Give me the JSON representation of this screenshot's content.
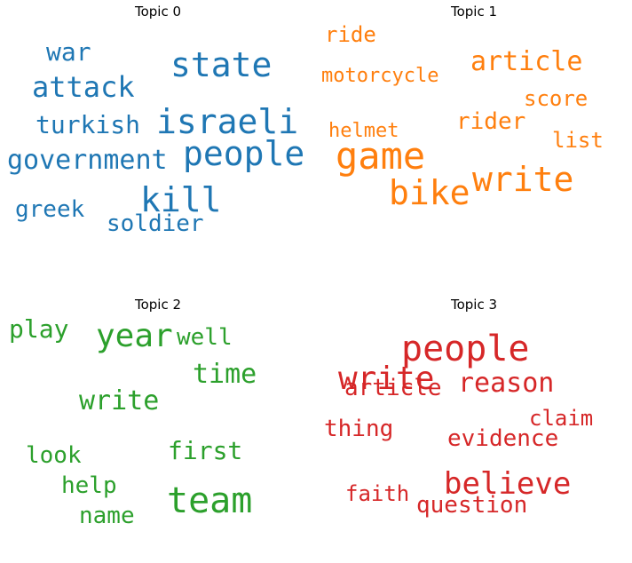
{
  "chart_data": [
    {
      "type": "wordcloud",
      "title": "Topic 0",
      "color": "#1f77b4",
      "words": [
        {
          "text": "state",
          "weight": 1.0
        },
        {
          "text": "israeli",
          "weight": 0.98
        },
        {
          "text": "people",
          "weight": 0.95
        },
        {
          "text": "kill",
          "weight": 0.93
        },
        {
          "text": "attack",
          "weight": 0.85
        },
        {
          "text": "government",
          "weight": 0.82
        },
        {
          "text": "turkish",
          "weight": 0.74
        },
        {
          "text": "war",
          "weight": 0.72
        },
        {
          "text": "greek",
          "weight": 0.66
        },
        {
          "text": "soldier",
          "weight": 0.65
        }
      ]
    },
    {
      "type": "wordcloud",
      "title": "Topic 1",
      "color": "#ff7f0e",
      "words": [
        {
          "text": "game",
          "weight": 1.0
        },
        {
          "text": "write",
          "weight": 0.95
        },
        {
          "text": "bike",
          "weight": 0.92
        },
        {
          "text": "article",
          "weight": 0.82
        },
        {
          "text": "rider",
          "weight": 0.7
        },
        {
          "text": "ride",
          "weight": 0.62
        },
        {
          "text": "score",
          "weight": 0.62
        },
        {
          "text": "list",
          "weight": 0.62
        },
        {
          "text": "motorcycle",
          "weight": 0.6
        },
        {
          "text": "helmet",
          "weight": 0.58
        }
      ]
    },
    {
      "type": "wordcloud",
      "title": "Topic 2",
      "color": "#2ca02c",
      "words": [
        {
          "text": "team",
          "weight": 1.0
        },
        {
          "text": "year",
          "weight": 0.95
        },
        {
          "text": "time",
          "weight": 0.82
        },
        {
          "text": "write",
          "weight": 0.78
        },
        {
          "text": "first",
          "weight": 0.74
        },
        {
          "text": "play",
          "weight": 0.7
        },
        {
          "text": "well",
          "weight": 0.68
        },
        {
          "text": "look",
          "weight": 0.66
        },
        {
          "text": "help",
          "weight": 0.64
        },
        {
          "text": "name",
          "weight": 0.62
        }
      ]
    },
    {
      "type": "wordcloud",
      "title": "Topic 3",
      "color": "#d62728",
      "words": [
        {
          "text": "people",
          "weight": 1.0
        },
        {
          "text": "write",
          "weight": 0.9
        },
        {
          "text": "believe",
          "weight": 0.88
        },
        {
          "text": "reason",
          "weight": 0.78
        },
        {
          "text": "evidence",
          "weight": 0.72
        },
        {
          "text": "article",
          "weight": 0.7
        },
        {
          "text": "thing",
          "weight": 0.68
        },
        {
          "text": "question",
          "weight": 0.68
        },
        {
          "text": "claim",
          "weight": 0.66
        },
        {
          "text": "faith",
          "weight": 0.64
        }
      ]
    }
  ]
}
